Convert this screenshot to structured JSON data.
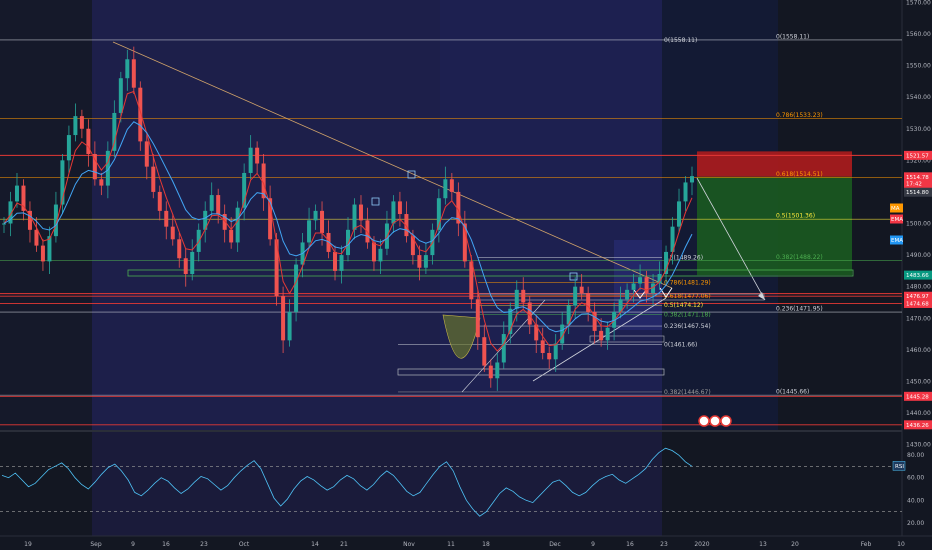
{
  "chart_data": {
    "type": "candlestick",
    "price_axis": {
      "ticks": [
        "1570.00",
        "1560.00",
        "1550.00",
        "1540.00",
        "1530.00",
        "1520.00",
        "1510.00",
        "1500.00",
        "1490.00",
        "1480.00",
        "1470.00",
        "1460.00",
        "1450.00",
        "1440.00",
        "1430.00"
      ],
      "range": [
        1428,
        1574
      ]
    },
    "time_axis": {
      "ticks": [
        "19",
        "Sep",
        "9",
        "16",
        "23",
        "Oct",
        "14",
        "21",
        "Nov",
        "11",
        "18",
        "Dec",
        "9",
        "16",
        "23",
        "2020",
        "13",
        "20",
        "Feb",
        "10"
      ]
    },
    "close_series_estimate": [
      1500,
      1507,
      1512,
      1504,
      1498,
      1493,
      1488,
      1496,
      1506,
      1520,
      1528,
      1534,
      1530,
      1522,
      1514,
      1512,
      1523,
      1535,
      1546,
      1552,
      1543,
      1526,
      1518,
      1510,
      1504,
      1499,
      1495,
      1489,
      1484,
      1491,
      1498,
      1504,
      1509,
      1503,
      1498,
      1494,
      1505,
      1516,
      1524,
      1519,
      1508,
      1495,
      1477,
      1463,
      1472,
      1487,
      1494,
      1501,
      1504,
      1497,
      1491,
      1485,
      1490,
      1498,
      1506,
      1501,
      1494,
      1488,
      1492,
      1500,
      1507,
      1503,
      1496,
      1490,
      1486,
      1490,
      1498,
      1508,
      1514,
      1510,
      1500,
      1488,
      1476,
      1464,
      1455,
      1451,
      1456,
      1465,
      1473,
      1479,
      1475,
      1468,
      1463,
      1459,
      1457,
      1462,
      1468,
      1474,
      1480,
      1478,
      1472,
      1466,
      1463,
      1467,
      1472,
      1476,
      1479,
      1481,
      1483,
      1478,
      1481,
      1484,
      1491,
      1499,
      1507,
      1513,
      1515
    ],
    "fibonacci_right": [
      {
        "label": "0(1558.11)",
        "price": 1558.11,
        "color": "#d1d4dc"
      },
      {
        "label": "0.786(1533.23)",
        "price": 1533.23,
        "color": "#ff9800"
      },
      {
        "label": "0.618(1514.51)",
        "price": 1514.51,
        "color": "#ff9800"
      },
      {
        "label": "0.5(1501.36)",
        "price": 1501.36,
        "color": "#ffeb3b"
      },
      {
        "label": "0.382(1488.22)",
        "price": 1488.22,
        "color": "#4caf50"
      },
      {
        "label": "0.236(1471.95)",
        "price": 1471.95,
        "color": "#d1d4dc"
      },
      {
        "label": "0(1445.66)",
        "price": 1445.66,
        "color": "#d1d4dc"
      }
    ],
    "fibonacci_inner": [
      {
        "label": "0.5(1489.26)",
        "price": 1489.26,
        "color": "#d1d4dc"
      },
      {
        "label": "0.786(1481.29)",
        "price": 1481.29,
        "color": "#ff9800"
      },
      {
        "label": "0.618(1477.06)",
        "price": 1477.06,
        "color": "#ff9800"
      },
      {
        "label": "0.5(1474.12)",
        "price": 1474.12,
        "color": "#ffeb3b"
      },
      {
        "label": "0.382(1471.18)",
        "price": 1471.18,
        "color": "#4caf50"
      },
      {
        "label": "0.236(1467.54)",
        "price": 1467.54,
        "color": "#d1d4dc"
      },
      {
        "label": "0(1461.66)",
        "price": 1461.66,
        "color": "#d1d4dc"
      },
      {
        "label": "0.382(1446.67)",
        "price": 1446.67,
        "color": "#9e9e9e"
      }
    ],
    "price_tags": [
      {
        "label": "1521.57",
        "price": 1521.57,
        "color": "#f23645"
      },
      {
        "label": "1514.78",
        "price": 1514.78,
        "color": "#f23645"
      },
      {
        "label": "17:42",
        "price": 1512.6,
        "color": "#f23645"
      },
      {
        "label": "1514.80",
        "price": 1509.9,
        "color": "#363a45"
      },
      {
        "label": "1483.66",
        "price": 1483.66,
        "color": "#089981"
      },
      {
        "label": "1476.97",
        "price": 1476.97,
        "color": "#f23645"
      },
      {
        "label": "1474.68",
        "price": 1474.68,
        "color": "#f23645"
      },
      {
        "label": "1445.28",
        "price": 1445.28,
        "color": "#f23645"
      },
      {
        "label": "1436.26",
        "price": 1436.26,
        "color": "#f23645"
      }
    ],
    "indicator_badges": [
      {
        "label": "MA",
        "color": "#ff9800"
      },
      {
        "label": "EMA",
        "color": "#f23645"
      },
      {
        "label": "EMA",
        "color": "#2196f3"
      }
    ],
    "horizontal_levels_red": [
      1521.57,
      1477.8,
      1476.97,
      1474.68,
      1445.28,
      1436.26
    ],
    "rsi": {
      "label": "RSI",
      "ticks": [
        "80.00",
        "60.00",
        "40.00",
        "20.00"
      ],
      "range": [
        12,
        92
      ],
      "levels": [
        70,
        30
      ],
      "values_estimate": [
        62,
        60,
        64,
        58,
        52,
        55,
        61,
        67,
        70,
        73,
        68,
        60,
        54,
        50,
        56,
        63,
        69,
        72,
        66,
        58,
        47,
        44,
        49,
        55,
        60,
        57,
        51,
        46,
        50,
        56,
        61,
        59,
        54,
        49,
        53,
        60,
        66,
        71,
        75,
        68,
        55,
        42,
        35,
        41,
        50,
        57,
        61,
        58,
        53,
        49,
        52,
        58,
        62,
        59,
        53,
        49,
        54,
        61,
        66,
        62,
        55,
        48,
        44,
        47,
        55,
        63,
        70,
        74,
        66,
        52,
        40,
        32,
        26,
        30,
        38,
        46,
        51,
        48,
        43,
        40,
        38,
        44,
        50,
        56,
        58,
        53,
        47,
        44,
        47,
        53,
        58,
        61,
        63,
        58,
        55,
        59,
        63,
        68,
        76,
        82,
        86,
        84,
        80,
        74,
        70
      ]
    },
    "trade_box": {
      "entry": 1514.78,
      "stop": 1521.57,
      "target": 1483.66,
      "risk_color": "#b71c1c",
      "reward_color": "#1b5e20"
    }
  }
}
